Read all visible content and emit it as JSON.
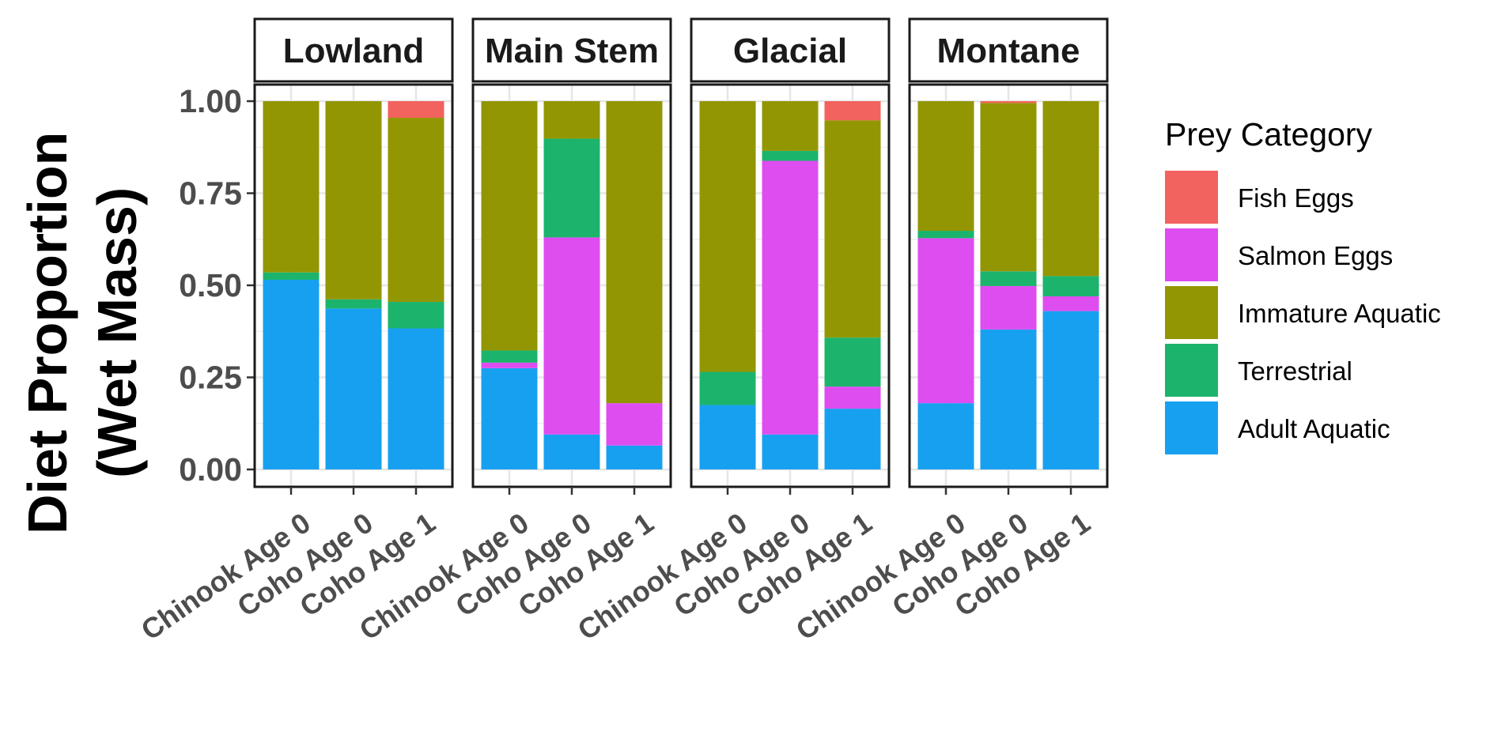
{
  "chart_data": {
    "type": "bar",
    "stacked": true,
    "facets": [
      "Lowland",
      "Main Stem",
      "Glacial",
      "Montane"
    ],
    "categories": [
      "Chinook Age 0",
      "Coho Age 0",
      "Coho Age 1"
    ],
    "ylabel_lines": [
      "Diet Proportion",
      "(Wet Mass)"
    ],
    "xlabel": "",
    "ylim": [
      0,
      1
    ],
    "yticks": [
      "0.00",
      "0.25",
      "0.50",
      "0.75",
      "1.00"
    ],
    "ytick_values": [
      0,
      0.25,
      0.5,
      0.75,
      1.0
    ],
    "grid": true,
    "legend": {
      "title": "Prey Category",
      "position": "right"
    },
    "series": [
      {
        "name": "Adult Aquatic",
        "color": "#18A0F0",
        "values": [
          [
            0.515,
            0.437,
            0.383
          ],
          [
            0.275,
            0.095,
            0.065
          ],
          [
            0.175,
            0.095,
            0.165
          ],
          [
            0.18,
            0.38,
            0.43
          ]
        ]
      },
      {
        "name": "Salmon Eggs",
        "color": "#DE4DF0",
        "values": [
          [
            0.0,
            0.0,
            0.0
          ],
          [
            0.015,
            0.535,
            0.115
          ],
          [
            0.0,
            0.743,
            0.06
          ],
          [
            0.448,
            0.118,
            0.04
          ]
        ]
      },
      {
        "name": "Terrestrial",
        "color": "#1CB46C",
        "values": [
          [
            0.02,
            0.025,
            0.072
          ],
          [
            0.033,
            0.268,
            0.0
          ],
          [
            0.09,
            0.027,
            0.133
          ],
          [
            0.02,
            0.04,
            0.055
          ]
        ]
      },
      {
        "name": "Immature Aquatic",
        "color": "#939603",
        "values": [
          [
            0.465,
            0.538,
            0.5
          ],
          [
            0.677,
            0.102,
            0.82
          ],
          [
            0.735,
            0.135,
            0.59
          ],
          [
            0.352,
            0.457,
            0.475
          ]
        ]
      },
      {
        "name": "Fish Eggs",
        "color": "#F2625E",
        "values": [
          [
            0.0,
            0.0,
            0.045
          ],
          [
            0.0,
            0.0,
            0.0
          ],
          [
            0.0,
            0.0,
            0.052
          ],
          [
            0.0,
            0.005,
            0.0
          ]
        ]
      }
    ],
    "legend_order": [
      "Fish Eggs",
      "Salmon Eggs",
      "Immature Aquatic",
      "Terrestrial",
      "Adult Aquatic"
    ]
  }
}
